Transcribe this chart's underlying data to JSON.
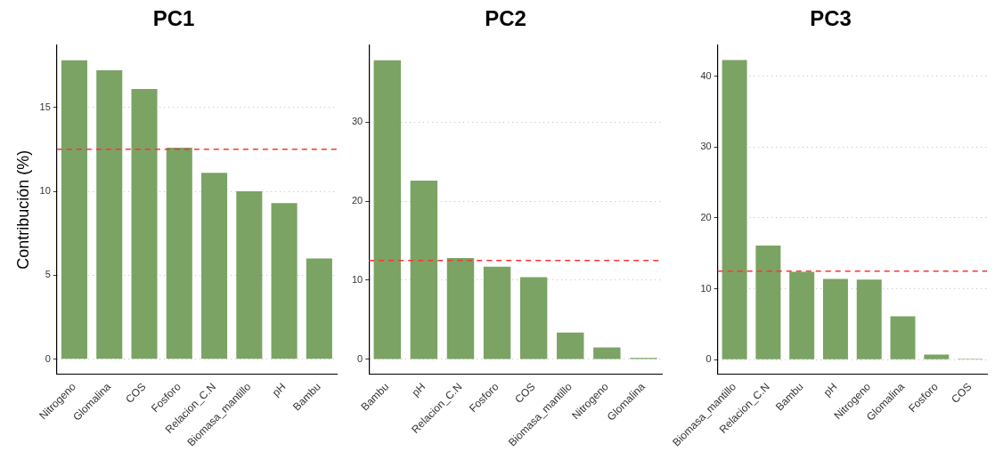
{
  "chart_data": [
    {
      "type": "bar",
      "title": "PC1",
      "ylabel": "Contribución (%)",
      "categories": [
        "Nitrogeno",
        "Glomalina",
        "COS",
        "Fosforo",
        "Relacion_C.N",
        "Biomasa_mantillo",
        "pH",
        "Bambu"
      ],
      "values": [
        17.8,
        17.2,
        16.1,
        12.6,
        11.1,
        10.0,
        9.3,
        6.0
      ],
      "color": "#7ba364",
      "ylim": [
        -0.9,
        18.7
      ],
      "yticks": [
        0,
        5,
        10,
        15
      ],
      "grid": "y",
      "ref_lines": [
        {
          "axis": "y",
          "value": 12.5,
          "color": "#ff3333",
          "line_style": "dashed"
        }
      ]
    },
    {
      "type": "bar",
      "title": "PC2",
      "categories": [
        "Bambu",
        "pH",
        "Relacion_C.N",
        "Fosforo",
        "COS",
        "Biomasa_mantillo",
        "Nitrogeno",
        "Glomalina"
      ],
      "values": [
        37.8,
        22.6,
        12.8,
        11.7,
        10.4,
        3.4,
        1.5,
        0.2
      ],
      "color": "#7ba364",
      "ylim": [
        -1.9,
        39.7
      ],
      "yticks": [
        0,
        10,
        20,
        30
      ],
      "grid": "y",
      "ref_lines": [
        {
          "axis": "y",
          "value": 12.5,
          "color": "#ff3333",
          "line_style": "dashed"
        }
      ]
    },
    {
      "type": "bar",
      "title": "PC3",
      "categories": [
        "Biomasa_mantillo",
        "Relacion_C.N",
        "Bambu",
        "pH",
        "Nitrogeno",
        "Glomalina",
        "Fosforo",
        "COS"
      ],
      "values": [
        42.3,
        16.1,
        12.4,
        11.4,
        11.3,
        6.1,
        0.7,
        0.1
      ],
      "color": "#7ba364",
      "ylim": [
        -2.1,
        44.4
      ],
      "yticks": [
        0,
        10,
        20,
        30,
        40
      ],
      "grid": "y",
      "ref_lines": [
        {
          "axis": "y",
          "value": 12.5,
          "color": "#ff3333",
          "line_style": "dashed"
        }
      ]
    }
  ]
}
